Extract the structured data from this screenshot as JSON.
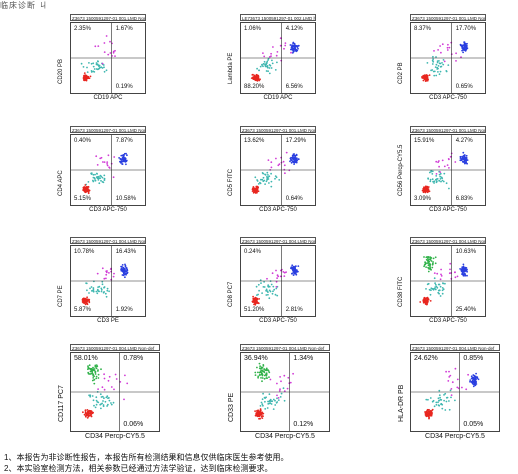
{
  "header": {
    "text": "临床诊断    ㄐ"
  },
  "chart_data": [
    {
      "type": "scatter",
      "title": "Z3673 1500591297-01 001.LMD   Non-def",
      "xlabel": "CD19 APC",
      "ylabel": "CD20 PB",
      "quadrants": {
        "ul": "2.35%",
        "ur": "1.67%",
        "lr": "0.19%"
      },
      "clusters": [
        "red",
        "cyan"
      ]
    },
    {
      "type": "scatter",
      "title": "LE73673 1500591297-01 002.LMD   lym",
      "xlabel": "CD19 APC",
      "ylabel": "Lambda PE",
      "quadrants": {
        "ul": "1.06%",
        "ur": "4.12%",
        "ll": "88.20%",
        "lr": "6.56%"
      },
      "clusters": [
        "blue"
      ]
    },
    {
      "type": "scatter",
      "title": "Z3673 1500591297-01 001.LMD   Non-def",
      "xlabel": "CD3 APC-750",
      "ylabel": "CD2 PB",
      "quadrants": {
        "ul": "8.37%",
        "ur": "17.70%",
        "lr": "0.65%"
      },
      "clusters": [
        "red",
        "blue"
      ]
    },
    {
      "type": "scatter",
      "title": "Z3673 1500591297-01 001.LMD   Non-def",
      "xlabel": "CD3 APC-750",
      "ylabel": "CD4 APC",
      "quadrants": {
        "ul": "0.40%",
        "ur": "7.87%",
        "ll": "5.15%",
        "lr": "10.58%"
      },
      "clusters": [
        "red",
        "blue"
      ]
    },
    {
      "type": "scatter",
      "title": "Z3673 1500591297-01 001.LMD   Non-def",
      "xlabel": "CD3 APC-750",
      "ylabel": "CD5 FITC",
      "quadrants": {
        "ul": "13.62%",
        "ur": "17.29%",
        "lr": "0.64%"
      },
      "clusters": [
        "red",
        "blue"
      ]
    },
    {
      "type": "scatter",
      "title": "Z3673 1500591297-01 001.LMD   Non-def",
      "xlabel": "CD3 APC-750",
      "ylabel": "CD56 Percp-CY5.5",
      "quadrants": {
        "ul": "15.91%",
        "ur": "4.27%",
        "ll": "3.09%",
        "lr": "6.83%"
      },
      "clusters": [
        "red",
        "blue"
      ]
    },
    {
      "type": "scatter",
      "title": "Z3673 1500591297-01 004.LMD   Non-def",
      "xlabel": "CD3 PE",
      "ylabel": "CD7 PE",
      "quadrants": {
        "ul": "10.78%",
        "ur": "16.43%",
        "ll": "5.87%",
        "lr": "1.92%"
      },
      "clusters": [
        "red",
        "blue"
      ]
    },
    {
      "type": "scatter",
      "title": "Z3673 1500591297-01 004.LMD   Non-def",
      "xlabel": "CD3 APC-750",
      "ylabel": "CD8 PC7",
      "quadrants": {
        "ul": "0.24%",
        "ur": "",
        "ll": "51.20%",
        "lr": "2.81%"
      },
      "clusters": [
        "red",
        "blue"
      ]
    },
    {
      "type": "scatter",
      "title": "Z3673 1500591297-01 004.LMD   Non-def",
      "xlabel": "CD3 APC-750",
      "ylabel": "CD38 FITC",
      "quadrants": {
        "ul": "",
        "ur": "10.63%",
        "lr": "25.40%"
      },
      "clusters": [
        "green",
        "blue"
      ]
    },
    {
      "type": "scatter",
      "title": "Z3673 1500591297-01 004.LMD   Non-def",
      "xlabel": "CD34 Percp-CY5.5",
      "ylabel": "CD117 PC7",
      "quadrants": {
        "ul": "58.01%",
        "ur": "0.78%",
        "lr": "0.06%"
      },
      "clusters": [
        "red",
        "green"
      ]
    },
    {
      "type": "scatter",
      "title": "Z3673 1500591297-01 004.LMD   Non-def",
      "xlabel": "CD34 Percp-CY5.5",
      "ylabel": "CD33 PE",
      "quadrants": {
        "ul": "36.94%",
        "ur": "1.34%",
        "lr": "0.12%"
      },
      "clusters": [
        "red",
        "green"
      ]
    },
    {
      "type": "scatter",
      "title": "Z3673 1500591297-01 004.LMD   Non-def",
      "xlabel": "CD34 Percp-CY5.5",
      "ylabel": "HLA-DR PB",
      "quadrants": {
        "ul": "24.62%",
        "ur": "0.85%",
        "lr": "0.05%"
      },
      "clusters": [
        "red",
        "blue"
      ]
    }
  ],
  "footer": {
    "note1": "1、本报告为非诊断性报告，本报告所有检测结果和信息仅供临床医生参考使用。",
    "note2": "2、本实验室检测方法，相关参数已经通过方法学验证，达到临床检测要求。"
  },
  "colors": {
    "red": "#e8261f",
    "blue": "#2a3fe0",
    "cyan": "#3fb7b0",
    "green": "#31b24a",
    "magenta": "#d13bd6"
  }
}
